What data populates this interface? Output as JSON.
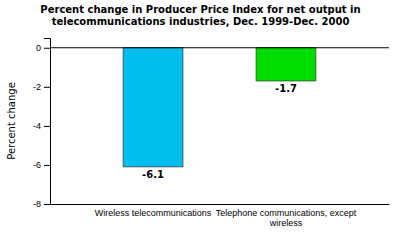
{
  "chart_data": {
    "type": "bar",
    "title": "Percent change in Producer Price Index for net output in\ntelecommunications industries, Dec. 1999-Dec. 2000",
    "categories": [
      "Wireless telecommunications",
      "Telephone communications, except\nwireless"
    ],
    "values": [
      -6.1,
      -1.7
    ],
    "colors": [
      "#00BFEF",
      "#00DD00"
    ],
    "ylabel": "Percent change",
    "ylim": [
      -8,
      0.5
    ],
    "yticks": [
      0,
      -2,
      -4,
      -6,
      -8
    ],
    "data_labels": true,
    "grid": false
  }
}
